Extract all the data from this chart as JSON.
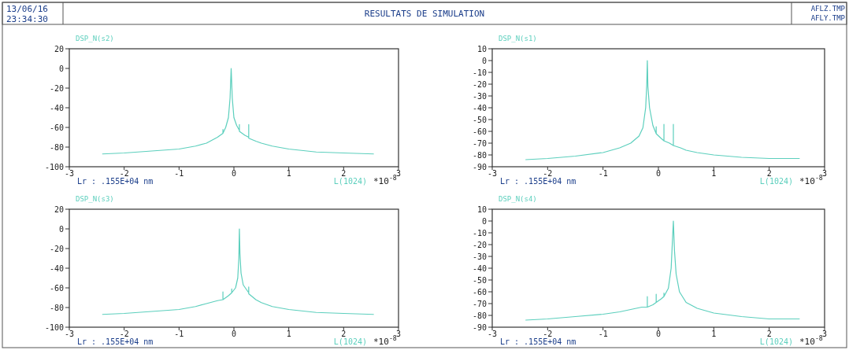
{
  "chart_data": [
    {
      "type": "other",
      "title": "RESULTATS DE SIMULATION",
      "annotations": [
        "13/06/16",
        "23:34:30",
        "AFLZ.TMP",
        "AFLY.TMP"
      ]
    },
    {
      "type": "line",
      "title": "DSP_N(s2)",
      "xlim": [
        -3,
        3
      ],
      "xticks": [
        -3,
        -2,
        -1,
        0,
        1,
        2,
        3
      ],
      "ylim": [
        -100,
        20
      ],
      "yticks": [
        -100,
        -80,
        -60,
        -40,
        -20,
        0,
        20
      ],
      "annotations": [
        "Lr : .155E+04 nm",
        "L(1024)",
        "*10$^{-8}$"
      ],
      "x": [
        -2.4,
        -2,
        -1.5,
        -1,
        -0.7,
        -0.5,
        -0.3,
        -0.2,
        -0.2,
        -0.2,
        -0.15,
        -0.1,
        -0.07,
        -0.05,
        -0.03,
        0,
        0.05,
        0.1,
        0.1,
        0.1,
        0.2,
        0.27,
        0.27,
        0.27,
        0.4,
        0.5,
        0.7,
        1,
        1.5,
        2,
        2.55
      ],
      "series": [
        {
          "color": "#5ccfbd",
          "values": [
            -87,
            -86,
            -84,
            -82,
            -79,
            -76,
            -70,
            -66,
            -62,
            -66,
            -60,
            -50,
            -30,
            0,
            -30,
            -50,
            -58,
            -63,
            -57,
            -64,
            -68,
            -70,
            -57,
            -71,
            -74,
            -76,
            -79,
            -82,
            -85,
            -86,
            -87
          ]
        }
      ]
    },
    {
      "type": "line",
      "title": "DSP_N(s1)",
      "xlim": [
        -3,
        3
      ],
      "xticks": [
        -3,
        -2,
        -1,
        0,
        1,
        2,
        3
      ],
      "ylim": [
        -90,
        10
      ],
      "yticks": [
        -90,
        -80,
        -70,
        -60,
        -50,
        -40,
        -30,
        -20,
        -10,
        0,
        10
      ],
      "annotations": [
        "Lr : .155E+04 nm",
        "L(1024)",
        "*10$^{-8}$"
      ],
      "x": [
        -2.4,
        -2,
        -1.5,
        -1,
        -0.7,
        -0.5,
        -0.35,
        -0.28,
        -0.23,
        -0.21,
        -0.2,
        -0.19,
        -0.16,
        -0.1,
        -0.04,
        -0.04,
        -0.04,
        0.05,
        0.1,
        0.1,
        0.1,
        0.2,
        0.27,
        0.27,
        0.27,
        0.4,
        0.5,
        0.7,
        1,
        1.5,
        2,
        2.55
      ],
      "series": [
        {
          "color": "#5ccfbd",
          "values": [
            -84,
            -83,
            -81,
            -78,
            -74,
            -70,
            -64,
            -57,
            -40,
            -20,
            0,
            -22,
            -40,
            -55,
            -62,
            -56,
            -62,
            -66,
            -68,
            -54,
            -68,
            -70,
            -72,
            -54,
            -72,
            -74,
            -76,
            -78,
            -80,
            -82,
            -83,
            -83
          ]
        }
      ]
    },
    {
      "type": "line",
      "title": "DSP_N(s3)",
      "xlim": [
        -3,
        3
      ],
      "xticks": [
        -3,
        -2,
        -1,
        0,
        1,
        2,
        3
      ],
      "ylim": [
        -100,
        20
      ],
      "yticks": [
        -100,
        -80,
        -60,
        -40,
        -20,
        0,
        20
      ],
      "annotations": [
        "Lr : .155E+04 nm",
        "L(1024)",
        "*10$^{-8}$"
      ],
      "x": [
        -2.4,
        -2,
        -1.5,
        -1,
        -0.7,
        -0.5,
        -0.3,
        -0.2,
        -0.2,
        -0.2,
        -0.1,
        -0.04,
        -0.04,
        -0.04,
        0.03,
        0.07,
        0.09,
        0.1,
        0.11,
        0.13,
        0.17,
        0.27,
        0.27,
        0.27,
        0.4,
        0.5,
        0.7,
        1,
        1.5,
        2,
        2.55
      ],
      "series": [
        {
          "color": "#5ccfbd",
          "values": [
            -87,
            -86,
            -84,
            -82,
            -79,
            -76,
            -73,
            -72,
            -64,
            -72,
            -68,
            -65,
            -61,
            -65,
            -60,
            -50,
            -30,
            0,
            -25,
            -45,
            -57,
            -65,
            -59,
            -66,
            -72,
            -75,
            -79,
            -82,
            -85,
            -86,
            -87
          ]
        }
      ]
    },
    {
      "type": "line",
      "title": "DSP_N(s4)",
      "xlim": [
        -3,
        3
      ],
      "xticks": [
        -3,
        -2,
        -1,
        0,
        1,
        2,
        3
      ],
      "ylim": [
        -90,
        10
      ],
      "yticks": [
        -90,
        -80,
        -70,
        -60,
        -50,
        -40,
        -30,
        -20,
        -10,
        0,
        10
      ],
      "annotations": [
        "Lr : .155E+04 nm",
        "L(1024)",
        "*10$^{-8}$"
      ],
      "x": [
        -2.4,
        -2,
        -1.5,
        -1,
        -0.7,
        -0.5,
        -0.3,
        -0.2,
        -0.2,
        -0.2,
        -0.1,
        -0.04,
        -0.04,
        -0.04,
        0.05,
        0.1,
        0.1,
        0.1,
        0.18,
        0.23,
        0.25,
        0.27,
        0.29,
        0.32,
        0.38,
        0.5,
        0.7,
        1,
        1.5,
        2,
        2.55
      ],
      "series": [
        {
          "color": "#5ccfbd",
          "values": [
            -84,
            -83,
            -81,
            -79,
            -77,
            -75,
            -73,
            -73,
            -64,
            -73,
            -71,
            -69,
            -62,
            -69,
            -66,
            -64,
            -61,
            -64,
            -57,
            -40,
            -20,
            0,
            -25,
            -45,
            -60,
            -69,
            -74,
            -78,
            -81,
            -83,
            -83
          ]
        }
      ]
    }
  ]
}
